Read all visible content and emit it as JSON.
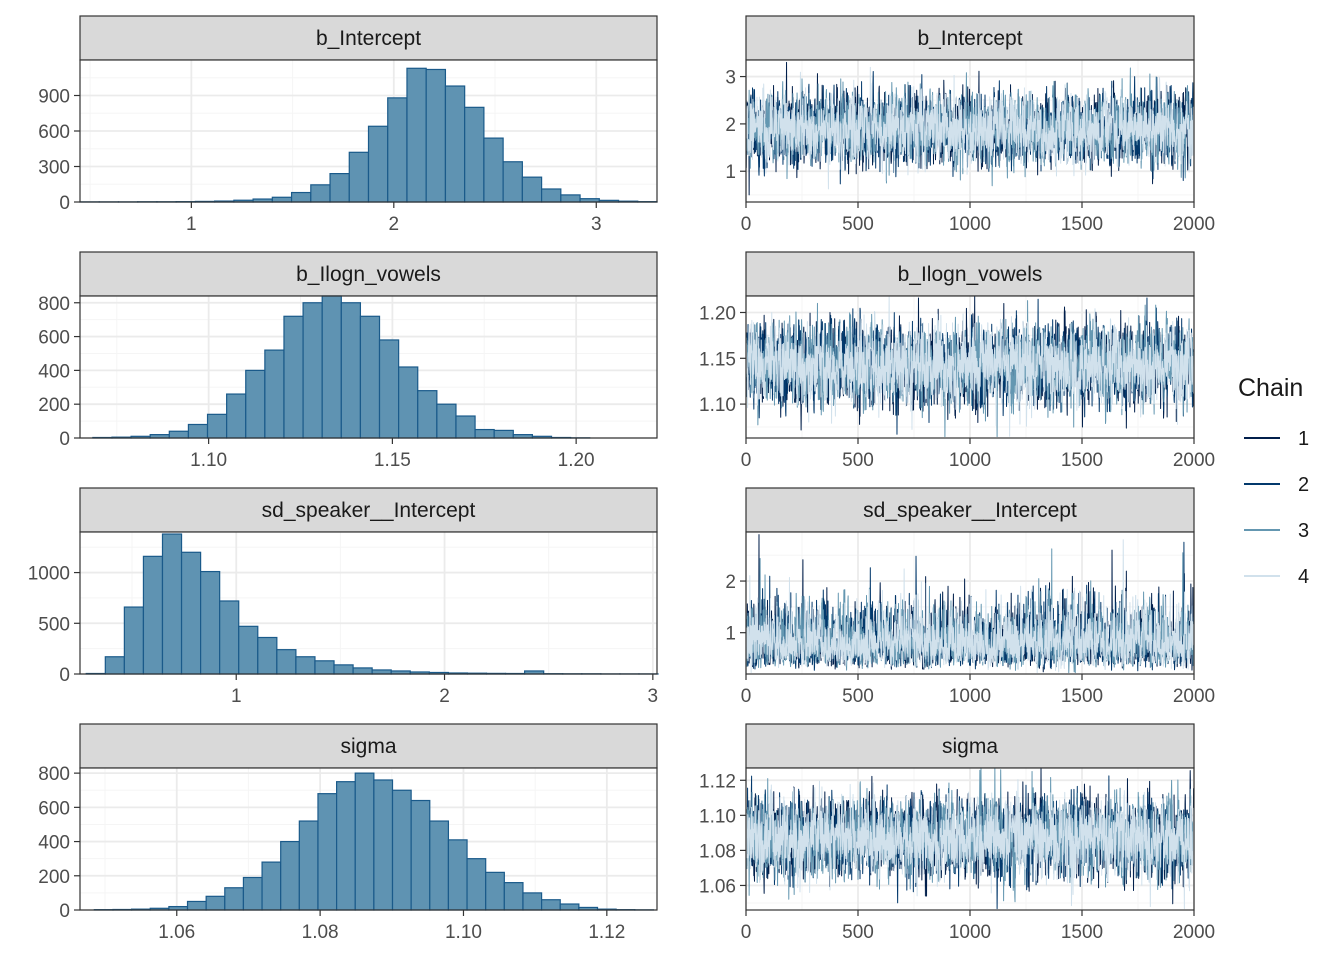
{
  "legend": {
    "title": "Chain",
    "items": [
      {
        "label": "1",
        "color": "#011f4b"
      },
      {
        "label": "2",
        "color": "#03396c"
      },
      {
        "label": "3",
        "color": "#6497b1"
      },
      {
        "label": "4",
        "color": "#d1e1ec"
      }
    ]
  },
  "chart_data": [
    {
      "type": "histogram",
      "title": "b_Intercept",
      "xlim": [
        0.45,
        3.3
      ],
      "ylim": [
        0,
        1200
      ],
      "xticks": [
        1,
        2,
        3
      ],
      "xtick_labels": [
        "1",
        "2",
        "3"
      ],
      "yticks": [
        0,
        300,
        600,
        900
      ],
      "ytick_labels": [
        "0",
        "300",
        "600",
        "900"
      ],
      "bin_start": 0.45,
      "bin_width": 0.095,
      "counts": [
        1,
        1,
        1,
        2,
        2,
        3,
        5,
        8,
        15,
        25,
        40,
        80,
        145,
        240,
        420,
        640,
        880,
        1130,
        1120,
        980,
        800,
        540,
        340,
        210,
        110,
        60,
        28,
        14,
        7,
        3
      ]
    },
    {
      "type": "line",
      "title": "b_Intercept",
      "xlim": [
        0,
        2000
      ],
      "ylim": [
        0.35,
        3.35
      ],
      "xticks": [
        0,
        500,
        1000,
        1500,
        2000
      ],
      "xtick_labels": [
        "0",
        "500",
        "1000",
        "1500",
        "2000"
      ],
      "yticks": [
        1,
        2,
        3
      ],
      "ytick_labels": [
        "1",
        "2",
        "3"
      ],
      "trace": {
        "mean": 1.9,
        "sd": 0.36,
        "n": 2000,
        "min_point": [
          14,
          0.5
        ]
      }
    },
    {
      "type": "histogram",
      "title": "b_Ilogn_vowels",
      "xlim": [
        1.065,
        1.222
      ],
      "ylim": [
        0,
        840
      ],
      "xticks": [
        1.1,
        1.15,
        1.2
      ],
      "xtick_labels": [
        "1.10",
        "1.15",
        "1.20"
      ],
      "yticks": [
        0,
        200,
        400,
        600,
        800
      ],
      "ytick_labels": [
        "0",
        "200",
        "400",
        "600",
        "800"
      ],
      "bin_start": 1.0685,
      "bin_width": 0.0052,
      "counts": [
        3,
        5,
        10,
        20,
        40,
        80,
        140,
        260,
        400,
        520,
        720,
        800,
        840,
        800,
        720,
        580,
        420,
        280,
        200,
        130,
        50,
        45,
        20,
        10,
        3,
        1
      ]
    },
    {
      "type": "line",
      "title": "b_Ilogn_vowels",
      "xlim": [
        0,
        2000
      ],
      "ylim": [
        1.063,
        1.218
      ],
      "xticks": [
        0,
        500,
        1000,
        1500,
        2000
      ],
      "xtick_labels": [
        "0",
        "500",
        "1000",
        "1500",
        "2000"
      ],
      "yticks": [
        1.1,
        1.15,
        1.2
      ],
      "ytick_labels": [
        "1.10",
        "1.15",
        "1.20"
      ],
      "trace": {
        "mean": 1.142,
        "sd": 0.021,
        "n": 2000
      }
    },
    {
      "type": "histogram",
      "title": "sd_speaker__Intercept",
      "xlim": [
        0.25,
        3.02
      ],
      "ylim": [
        0,
        1400
      ],
      "xticks": [
        1,
        2,
        3
      ],
      "xtick_labels": [
        "1",
        "2",
        "3"
      ],
      "yticks": [
        0,
        500,
        1000
      ],
      "ytick_labels": [
        "0",
        "500",
        "1000"
      ],
      "bin_start": 0.28,
      "bin_width": 0.0915,
      "counts": [
        5,
        170,
        660,
        1160,
        1380,
        1200,
        1010,
        720,
        470,
        360,
        240,
        170,
        130,
        90,
        60,
        40,
        30,
        20,
        15,
        10,
        8,
        6,
        5,
        30,
        3,
        2,
        2,
        1,
        1,
        1
      ]
    },
    {
      "type": "line",
      "title": "sd_speaker__Intercept",
      "xlim": [
        0,
        2000
      ],
      "ylim": [
        0.2,
        2.95
      ],
      "xticks": [
        0,
        500,
        1000,
        1500,
        2000
      ],
      "xtick_labels": [
        "0",
        "500",
        "1000",
        "1500",
        "2000"
      ],
      "yticks": [
        1,
        2
      ],
      "ytick_labels": [
        "1",
        "2"
      ],
      "trace": {
        "mean": 0.85,
        "sd": 0.3,
        "n": 2000,
        "max_point": [
          58,
          2.9
        ]
      }
    },
    {
      "type": "histogram",
      "title": "sigma",
      "xlim": [
        1.0465,
        1.127
      ],
      "ylim": [
        0,
        830
      ],
      "xticks": [
        1.06,
        1.08,
        1.1,
        1.12
      ],
      "xtick_labels": [
        "1.06",
        "1.08",
        "1.10",
        "1.12"
      ],
      "yticks": [
        0,
        200,
        400,
        600,
        800
      ],
      "ytick_labels": [
        "0",
        "200",
        "400",
        "600",
        "800"
      ],
      "bin_start": 1.0485,
      "bin_width": 0.0026,
      "counts": [
        2,
        3,
        5,
        10,
        20,
        50,
        80,
        130,
        190,
        280,
        400,
        520,
        680,
        750,
        800,
        760,
        700,
        640,
        520,
        410,
        300,
        220,
        160,
        100,
        60,
        35,
        15,
        5,
        2,
        1
      ]
    },
    {
      "type": "line",
      "title": "sigma",
      "xlim": [
        0,
        2000
      ],
      "ylim": [
        1.046,
        1.127
      ],
      "xticks": [
        0,
        500,
        1000,
        1500,
        2000
      ],
      "xtick_labels": [
        "0",
        "500",
        "1000",
        "1500",
        "2000"
      ],
      "yticks": [
        1.06,
        1.08,
        1.1,
        1.12
      ],
      "ytick_labels": [
        "1.06",
        "1.08",
        "1.10",
        "1.12"
      ],
      "trace": {
        "mean": 1.087,
        "sd": 0.011,
        "n": 2000
      }
    }
  ],
  "colors": {
    "hist_fill": "#5f93b2",
    "hist_stroke": "#1a5a8a",
    "strip_fill": "#d9d9d9",
    "grid_major": "#ebebeb",
    "grid_minor": "#f5f5f5",
    "axis_text": "#4d4d4d",
    "panel_border": "#333333"
  }
}
